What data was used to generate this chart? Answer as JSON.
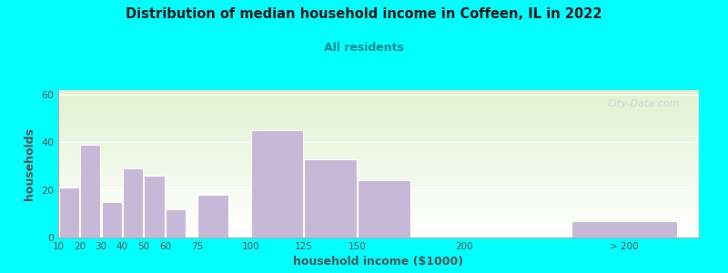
{
  "title": "Distribution of median household income in Coffeen, IL in 2022",
  "subtitle": "All residents",
  "xlabel": "household income ($1000)",
  "ylabel": "households",
  "background_color": "#00FFFF",
  "bar_color": "#c8b8d8",
  "bar_edge_color": "#ffffff",
  "title_color": "#1a1a1a",
  "subtitle_color": "#008888",
  "axis_label_color": "#555555",
  "tick_label_color": "#555555",
  "watermark": "City-Data.com",
  "values": [
    21,
    39,
    15,
    29,
    26,
    12,
    18,
    45,
    33,
    24,
    0,
    7
  ],
  "bar_widths": [
    10,
    10,
    10,
    10,
    10,
    10,
    15,
    25,
    25,
    25,
    50,
    50
  ],
  "bar_lefts": [
    10,
    20,
    30,
    40,
    50,
    60,
    75,
    100,
    125,
    150,
    200,
    250
  ],
  "tick_positions": [
    10,
    20,
    30,
    40,
    50,
    60,
    75,
    100,
    125,
    150,
    200,
    275
  ],
  "tick_labels": [
    "10",
    "20",
    "30",
    "40",
    "50",
    "60",
    "75",
    "100",
    "125",
    "150",
    "200",
    "> 200"
  ],
  "ylim": [
    0,
    62
  ],
  "yticks": [
    0,
    20,
    40,
    60
  ],
  "xlim": [
    10,
    310
  ]
}
